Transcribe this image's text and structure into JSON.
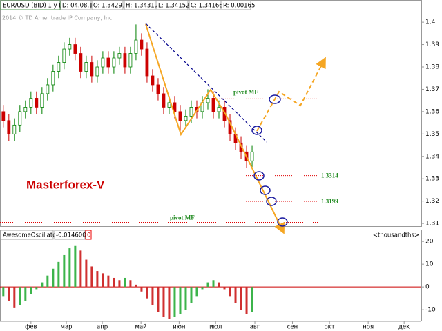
{
  "header": {
    "symbol": "EUR/USD (BID) 1 y D",
    "fields": [
      "D: 04.08.14",
      "O: 1.34297",
      "H: 1.34317",
      "L: 1.34152",
      "C: 1.34166",
      "R: 0.00165"
    ],
    "copyright": "2014 © TD Ameritrade IP Company, Inc."
  },
  "chart_data": [
    {
      "type": "candlestick",
      "watermark": "Masterforex-V",
      "up_color": "#008000",
      "down_color": "#cc0000",
      "xlim": [
        -0.6,
        75.6
      ],
      "ylim": [
        1.3088,
        1.4099
      ],
      "yticks": [
        1.31,
        1.32,
        1.33,
        1.34,
        1.35,
        1.36,
        1.37,
        1.38,
        1.39,
        1.4
      ],
      "open": [
        1.36,
        1.356,
        1.35,
        1.354,
        1.36,
        1.362,
        1.366,
        1.362,
        1.368,
        1.372,
        1.378,
        1.382,
        1.388,
        1.39,
        1.386,
        1.378,
        1.382,
        1.376,
        1.38,
        1.384,
        1.38,
        1.384,
        1.386,
        1.38,
        1.386,
        1.392,
        1.388,
        1.376,
        1.372,
        1.368,
        1.362,
        1.364,
        1.36,
        1.356,
        1.358,
        1.362,
        1.36,
        1.364,
        1.366,
        1.36,
        1.362,
        1.356,
        1.35,
        1.346,
        1.342,
        1.338
      ],
      "high": [
        1.363,
        1.359,
        1.357,
        1.363,
        1.365,
        1.369,
        1.369,
        1.371,
        1.375,
        1.381,
        1.385,
        1.391,
        1.393,
        1.393,
        1.389,
        1.385,
        1.385,
        1.383,
        1.387,
        1.387,
        1.387,
        1.389,
        1.389,
        1.389,
        1.399,
        1.395,
        1.391,
        1.379,
        1.375,
        1.371,
        1.367,
        1.367,
        1.363,
        1.361,
        1.365,
        1.365,
        1.367,
        1.37,
        1.369,
        1.365,
        1.365,
        1.359,
        1.353,
        1.349,
        1.345,
        1.345
      ],
      "low": [
        1.353,
        1.347,
        1.347,
        1.351,
        1.357,
        1.359,
        1.359,
        1.359,
        1.365,
        1.369,
        1.375,
        1.379,
        1.385,
        1.383,
        1.375,
        1.375,
        1.373,
        1.373,
        1.377,
        1.377,
        1.377,
        1.381,
        1.377,
        1.377,
        1.383,
        1.385,
        1.373,
        1.369,
        1.365,
        1.359,
        1.359,
        1.357,
        1.351,
        1.353,
        1.355,
        1.357,
        1.357,
        1.361,
        1.357,
        1.357,
        1.353,
        1.347,
        1.343,
        1.339,
        1.335,
        1.335
      ],
      "close": [
        1.356,
        1.35,
        1.354,
        1.36,
        1.362,
        1.366,
        1.362,
        1.368,
        1.372,
        1.378,
        1.382,
        1.388,
        1.39,
        1.386,
        1.378,
        1.382,
        1.376,
        1.38,
        1.384,
        1.38,
        1.384,
        1.386,
        1.38,
        1.386,
        1.392,
        1.388,
        1.376,
        1.372,
        1.368,
        1.362,
        1.364,
        1.36,
        1.356,
        1.358,
        1.362,
        1.36,
        1.364,
        1.366,
        1.36,
        1.362,
        1.356,
        1.35,
        1.346,
        1.342,
        1.338,
        1.342
      ],
      "levels": [
        {
          "value": 1.3657,
          "label": "pivot MF"
        },
        {
          "value": 1.3314,
          "label": "1.3314"
        },
        {
          "value": 1.325
        },
        {
          "value": 1.3199,
          "label": "1.3199"
        },
        {
          "value": 1.3105,
          "label": "pivot MF"
        }
      ]
    },
    {
      "type": "bar",
      "title": "AwesomeOscillator",
      "current": -0.0146006,
      "signal": 0,
      "unit_label": "<thousandths>",
      "up_color": "#3cb44b",
      "down_color": "#d03030",
      "zero_color": "#cc0000",
      "xlim": [
        -0.6,
        75.6
      ],
      "ylim": [
        -14.8,
        25.2
      ],
      "yticks": [
        20,
        10,
        0,
        -10
      ],
      "xticks": [
        {
          "value": 5,
          "label": "фев"
        },
        {
          "value": 11.4,
          "label": "мар"
        },
        {
          "value": 17.9,
          "label": "апр"
        },
        {
          "value": 24.9,
          "label": "май"
        },
        {
          "value": 31.8,
          "label": "июн"
        },
        {
          "value": 38.4,
          "label": "июл"
        },
        {
          "value": 45.5,
          "label": "авг"
        },
        {
          "value": 52.3,
          "label": "сен"
        },
        {
          "value": 59,
          "label": "окт"
        },
        {
          "value": 66,
          "label": "ноя"
        },
        {
          "value": 72.5,
          "label": "дек"
        }
      ],
      "values": [
        -4,
        -6,
        -9,
        -8,
        -6,
        -3,
        -1,
        2,
        5,
        8,
        11,
        14,
        17,
        18,
        16,
        12,
        9,
        7,
        6,
        5,
        4,
        3,
        4,
        3,
        1,
        -2,
        -5,
        -8,
        -11,
        -13,
        -14,
        -13,
        -12,
        -10,
        -7,
        -4,
        -1,
        2,
        3,
        2,
        -1,
        -4,
        -7,
        -10,
        -12,
        -11
      ]
    }
  ]
}
